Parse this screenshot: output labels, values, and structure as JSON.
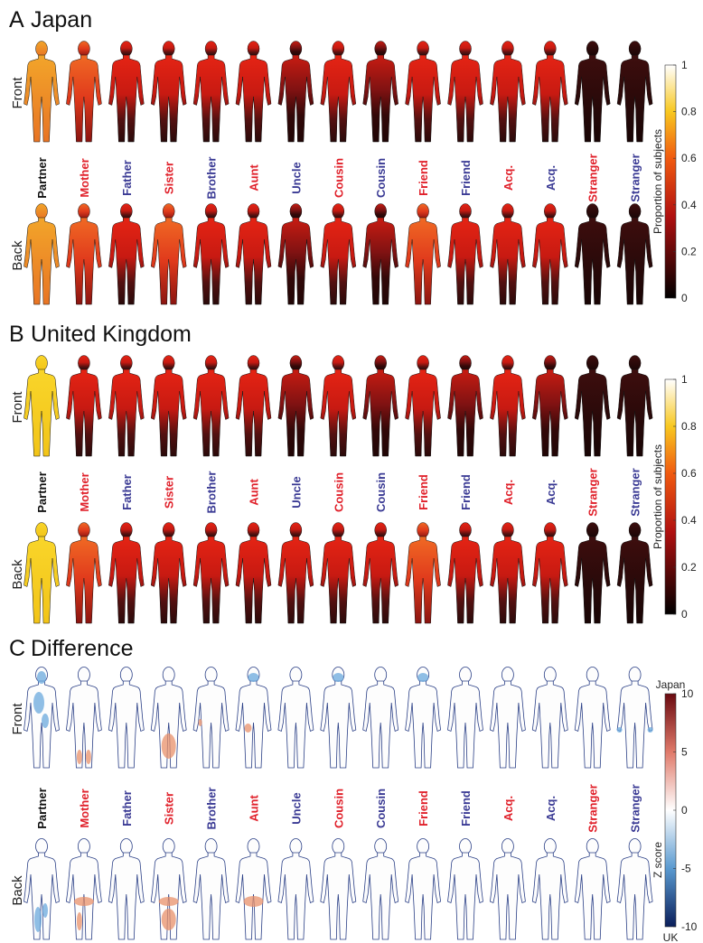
{
  "relations": [
    {
      "name": "Partner",
      "color": "#111111"
    },
    {
      "name": "Mother",
      "color": "#e0202a"
    },
    {
      "name": "Father",
      "color": "#3a3a94"
    },
    {
      "name": "Sister",
      "color": "#e0202a"
    },
    {
      "name": "Brother",
      "color": "#3a3a94"
    },
    {
      "name": "Aunt",
      "color": "#e0202a"
    },
    {
      "name": "Uncle",
      "color": "#3a3a94"
    },
    {
      "name": "Cousin",
      "color": "#e0202a"
    },
    {
      "name": "Cousin",
      "color": "#3a3a94"
    },
    {
      "name": "Friend",
      "color": "#e0202a"
    },
    {
      "name": "Friend",
      "color": "#3a3a94"
    },
    {
      "name": "Acq.",
      "color": "#e0202a"
    },
    {
      "name": "Acq.",
      "color": "#3a3a94"
    },
    {
      "name": "Stranger",
      "color": "#e0202a"
    },
    {
      "name": "Stranger",
      "color": "#3a3a94"
    }
  ],
  "rows": [
    "Front",
    "Back"
  ],
  "panels": [
    {
      "letter": "A",
      "title": "Japan",
      "colorbar": {
        "label": "Proportion of subjects",
        "ticks": [
          1,
          0.8,
          0.6,
          0.4,
          0.2,
          0
        ]
      }
    },
    {
      "letter": "B",
      "title": "United Kingdom",
      "colorbar": {
        "label": "Proportion of subjects",
        "ticks": [
          1,
          0.8,
          0.6,
          0.4,
          0.2,
          0
        ]
      }
    },
    {
      "letter": "C",
      "title": "Difference",
      "colorbar": {
        "label": "Z score",
        "top": "Japan",
        "bottom": "UK",
        "ticks": [
          10,
          5,
          0,
          -5,
          -10
        ]
      }
    }
  ]
}
